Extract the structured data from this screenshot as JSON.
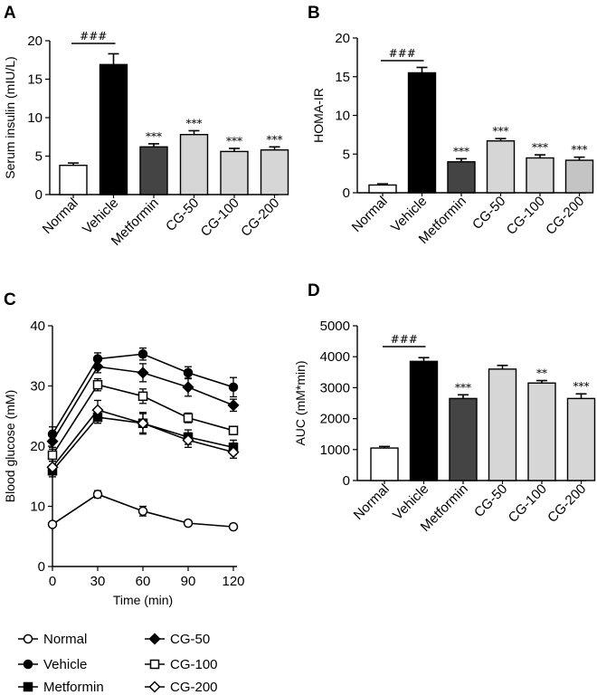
{
  "panels": {
    "a": "A",
    "b": "B",
    "c": "C",
    "d": "D"
  },
  "chart_data": [
    {
      "id": "a",
      "type": "bar",
      "ylabel": "Serum insulin (mIU/L)",
      "ylim": [
        0,
        20
      ],
      "yticks": [
        "0",
        "5",
        "10",
        "15",
        "20"
      ],
      "categories": [
        "Normal",
        "Vehicle",
        "Metformin",
        "CG-50",
        "CG-100",
        "CG-200"
      ],
      "values": [
        3.8,
        16.9,
        6.2,
        7.8,
        5.6,
        5.8
      ],
      "errors": [
        0.3,
        1.4,
        0.4,
        0.5,
        0.4,
        0.4
      ],
      "fills": [
        "#ffffff",
        "#000000",
        "#444444",
        "#d6d6d6",
        "#d6d6d6",
        "#d6d6d6"
      ],
      "significance": [
        "",
        "",
        "***",
        "***",
        "***",
        "***"
      ],
      "comparison": "###"
    },
    {
      "id": "b",
      "type": "bar",
      "ylabel": "HOMA-IR",
      "ylim": [
        0,
        20
      ],
      "yticks": [
        "0",
        "5",
        "10",
        "15",
        "20"
      ],
      "categories": [
        "Normal",
        "Vehicle",
        "Metformin",
        "CG-50",
        "CG-100",
        "CG-200"
      ],
      "values": [
        1.0,
        15.5,
        4.0,
        6.7,
        4.5,
        4.2
      ],
      "errors": [
        0.15,
        0.7,
        0.4,
        0.3,
        0.4,
        0.4
      ],
      "fills": [
        "#ffffff",
        "#000000",
        "#444444",
        "#d6d6d6",
        "#d6d6d6",
        "#c4c4c4"
      ],
      "significance": [
        "",
        "",
        "***",
        "***",
        "***",
        "***"
      ],
      "comparison": "###"
    },
    {
      "id": "c",
      "type": "line",
      "xlabel": "Time (min)",
      "ylabel": "Blood glucose (mM)",
      "x": [
        0,
        30,
        60,
        90,
        120
      ],
      "xticks": [
        "0",
        "30",
        "60",
        "90",
        "120"
      ],
      "xlim": [
        0,
        120
      ],
      "ylim": [
        0,
        40
      ],
      "yticks": [
        "0",
        "10",
        "20",
        "30",
        "40"
      ],
      "series": [
        {
          "name": "Normal",
          "marker": "circle-open",
          "values": [
            7.0,
            12.0,
            9.2,
            7.2,
            6.6
          ],
          "errors": [
            0.4,
            0.6,
            0.8,
            0.4,
            0.3
          ]
        },
        {
          "name": "Vehicle",
          "marker": "circle-filled",
          "values": [
            22.0,
            34.5,
            35.3,
            32.2,
            29.8
          ],
          "errors": [
            1.2,
            1.0,
            1.0,
            1.0,
            1.6
          ]
        },
        {
          "name": "Metformin",
          "marker": "square-filled",
          "values": [
            15.9,
            24.8,
            23.8,
            21.5,
            19.8
          ],
          "errors": [
            1.0,
            1.0,
            1.6,
            1.2,
            1.2
          ]
        },
        {
          "name": "CG-50",
          "marker": "diamond-filled",
          "values": [
            20.8,
            33.2,
            32.2,
            29.8,
            26.8
          ],
          "errors": [
            1.0,
            1.0,
            1.5,
            1.5,
            1.0
          ]
        },
        {
          "name": "CG-100",
          "marker": "square-open",
          "values": [
            18.5,
            30.2,
            28.3,
            24.7,
            22.6
          ],
          "errors": [
            1.0,
            1.0,
            1.2,
            0.8,
            0.6
          ]
        },
        {
          "name": "CG-200",
          "marker": "diamond-open",
          "values": [
            16.5,
            26.0,
            23.8,
            21.0,
            19.0
          ],
          "errors": [
            1.0,
            1.6,
            1.8,
            1.2,
            1.0
          ]
        }
      ]
    },
    {
      "id": "d",
      "type": "bar",
      "ylabel": "AUC (mM*min)",
      "ylim": [
        0,
        5000
      ],
      "yticks": [
        "0",
        "1000",
        "2000",
        "3000",
        "4000",
        "5000"
      ],
      "categories": [
        "Normal",
        "Vehicle",
        "Metformin",
        "CG-50",
        "CG-100",
        "CG-200"
      ],
      "values": [
        1050,
        3850,
        2650,
        3600,
        3150,
        2650
      ],
      "errors": [
        50,
        120,
        120,
        120,
        80,
        150
      ],
      "fills": [
        "#ffffff",
        "#000000",
        "#444444",
        "#d6d6d6",
        "#d6d6d6",
        "#d6d6d6"
      ],
      "significance": [
        "",
        "",
        "***",
        "",
        "**",
        "***"
      ],
      "comparison": "###"
    }
  ]
}
